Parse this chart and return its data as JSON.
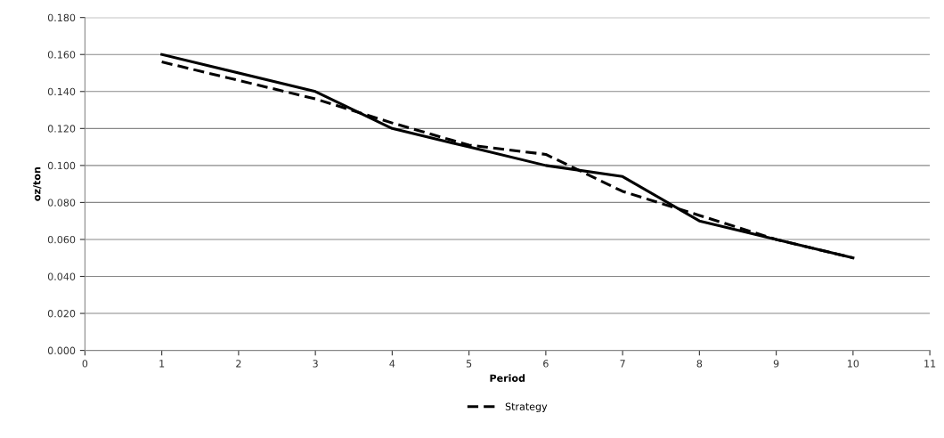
{
  "chart_data": {
    "type": "line",
    "xlabel": "Period",
    "ylabel": "oz/ton",
    "x": [
      1,
      3,
      4,
      5,
      6,
      7,
      8,
      9,
      10
    ],
    "series": [
      {
        "name": "Strategy",
        "color": "#000000",
        "line_style": "dashed",
        "values": [
          0.156,
          0.136,
          0.123,
          0.111,
          0.106,
          0.086,
          0.073,
          0.06,
          0.05
        ]
      },
      {
        "color": "#000000",
        "line_style": "solid",
        "values": [
          0.16,
          0.14,
          0.12,
          0.11,
          0.1,
          0.094,
          0.07,
          0.06,
          0.05
        ]
      }
    ],
    "xlim": [
      0,
      11
    ],
    "xticks": [
      0,
      1,
      2,
      3,
      4,
      5,
      6,
      7,
      8,
      9,
      10,
      11
    ],
    "ylim": [
      0,
      0.18
    ],
    "yticks": [
      {
        "value": 0,
        "label": "0.000"
      },
      {
        "value": 0.02,
        "label": "0.020"
      },
      {
        "value": 0.04,
        "label": "0.040"
      },
      {
        "value": 0.06,
        "label": "0.060"
      },
      {
        "value": 0.08,
        "label": "0.080"
      },
      {
        "value": 0.1,
        "label": "0.100"
      },
      {
        "value": 0.12,
        "label": "0.120"
      },
      {
        "value": 0.14,
        "label": "0.140"
      },
      {
        "value": 0.16,
        "label": "0.160"
      },
      {
        "value": 0.18,
        "label": "0.180"
      }
    ],
    "grid": "y",
    "legend": "bottom",
    "marker": "none"
  }
}
